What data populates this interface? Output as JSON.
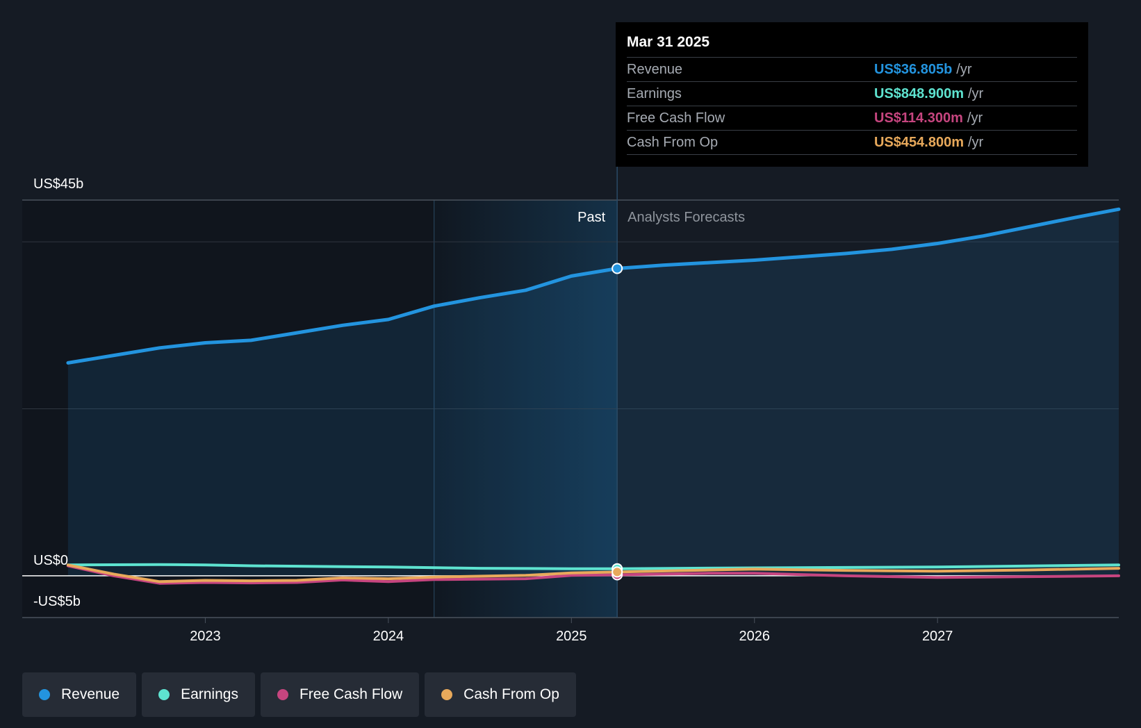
{
  "colors": {
    "background": "#151b24",
    "revenue": "#2394df",
    "earnings": "#5ee3d0",
    "free_cash_flow": "#c6457f",
    "cash_from_op": "#e8a95b"
  },
  "tooltip": {
    "date": "Mar 31 2025",
    "rows": [
      {
        "label": "Revenue",
        "value": "US$36.805b",
        "unit": "/yr"
      },
      {
        "label": "Earnings",
        "value": "US$848.900m",
        "unit": "/yr"
      },
      {
        "label": "Free Cash Flow",
        "value": "US$114.300m",
        "unit": "/yr"
      },
      {
        "label": "Cash From Op",
        "value": "US$454.800m",
        "unit": "/yr"
      }
    ]
  },
  "legend": [
    {
      "label": "Revenue"
    },
    {
      "label": "Earnings"
    },
    {
      "label": "Free Cash Flow"
    },
    {
      "label": "Cash From Op"
    }
  ],
  "chart_data": {
    "type": "line",
    "y_axis_labels": {
      "top": "US$45b",
      "zero": "US$0",
      "bottom": "-US$5b"
    },
    "period_labels": {
      "past": "Past",
      "forecast": "Analysts Forecasts"
    },
    "ylim": [
      -5,
      45
    ],
    "xlim": [
      2022.0,
      2027.99
    ],
    "x_ticks": [
      2023,
      2024,
      2025,
      2026,
      2027
    ],
    "x_tick_labels": [
      "2023",
      "2024",
      "2025",
      "2026",
      "2027"
    ],
    "divider_x": 2025.25,
    "highlight_start_x": 2024.25,
    "grid": true,
    "series": [
      {
        "name": "Revenue",
        "color_key": "revenue",
        "area": true,
        "points": [
          [
            2022.25,
            25.5
          ],
          [
            2022.5,
            26.4
          ],
          [
            2022.75,
            27.3
          ],
          [
            2023.0,
            27.9
          ],
          [
            2023.25,
            28.2
          ],
          [
            2023.5,
            29.1
          ],
          [
            2023.75,
            30.0
          ],
          [
            2024.0,
            30.7
          ],
          [
            2024.25,
            32.3
          ],
          [
            2024.5,
            33.3
          ],
          [
            2024.75,
            34.2
          ],
          [
            2025.0,
            35.9
          ],
          [
            2025.25,
            36.805
          ],
          [
            2025.5,
            37.2
          ],
          [
            2025.75,
            37.5
          ],
          [
            2026.0,
            37.8
          ],
          [
            2026.25,
            38.2
          ],
          [
            2026.5,
            38.6
          ],
          [
            2026.75,
            39.1
          ],
          [
            2027.0,
            39.8
          ],
          [
            2027.25,
            40.7
          ],
          [
            2027.5,
            41.8
          ],
          [
            2027.75,
            42.9
          ],
          [
            2027.99,
            43.9
          ]
        ]
      },
      {
        "name": "Earnings",
        "color_key": "earnings",
        "area": false,
        "points": [
          [
            2022.25,
            1.3
          ],
          [
            2022.75,
            1.35
          ],
          [
            2023.0,
            1.3
          ],
          [
            2023.25,
            1.2
          ],
          [
            2023.75,
            1.1
          ],
          [
            2024.0,
            1.05
          ],
          [
            2024.5,
            0.9
          ],
          [
            2025.0,
            0.85
          ],
          [
            2025.25,
            0.8489
          ],
          [
            2026.0,
            0.95
          ],
          [
            2026.5,
            1.0
          ],
          [
            2027.0,
            1.05
          ],
          [
            2027.99,
            1.3
          ]
        ]
      },
      {
        "name": "Free Cash Flow",
        "color_key": "free_cash_flow",
        "area": false,
        "points": [
          [
            2022.25,
            1.2
          ],
          [
            2022.5,
            0.0
          ],
          [
            2022.75,
            -0.9
          ],
          [
            2023.0,
            -0.8
          ],
          [
            2023.25,
            -0.85
          ],
          [
            2023.5,
            -0.8
          ],
          [
            2023.75,
            -0.5
          ],
          [
            2024.0,
            -0.7
          ],
          [
            2024.25,
            -0.45
          ],
          [
            2024.75,
            -0.35
          ],
          [
            2025.0,
            0.05
          ],
          [
            2025.25,
            0.1143
          ],
          [
            2025.75,
            0.3
          ],
          [
            2026.0,
            0.3
          ],
          [
            2026.5,
            0.0
          ],
          [
            2027.0,
            -0.2
          ],
          [
            2027.5,
            -0.1
          ],
          [
            2027.99,
            0.0
          ]
        ]
      },
      {
        "name": "Cash From Op",
        "color_key": "cash_from_op",
        "area": false,
        "points": [
          [
            2022.25,
            1.3
          ],
          [
            2022.5,
            0.2
          ],
          [
            2022.75,
            -0.7
          ],
          [
            2023.0,
            -0.55
          ],
          [
            2023.25,
            -0.6
          ],
          [
            2023.5,
            -0.55
          ],
          [
            2023.75,
            -0.25
          ],
          [
            2024.0,
            -0.35
          ],
          [
            2024.25,
            -0.15
          ],
          [
            2024.75,
            0.05
          ],
          [
            2025.0,
            0.35
          ],
          [
            2025.25,
            0.4548
          ],
          [
            2025.75,
            0.7
          ],
          [
            2026.0,
            0.8
          ],
          [
            2026.5,
            0.65
          ],
          [
            2027.0,
            0.55
          ],
          [
            2027.5,
            0.7
          ],
          [
            2027.99,
            0.9
          ]
        ]
      }
    ]
  }
}
